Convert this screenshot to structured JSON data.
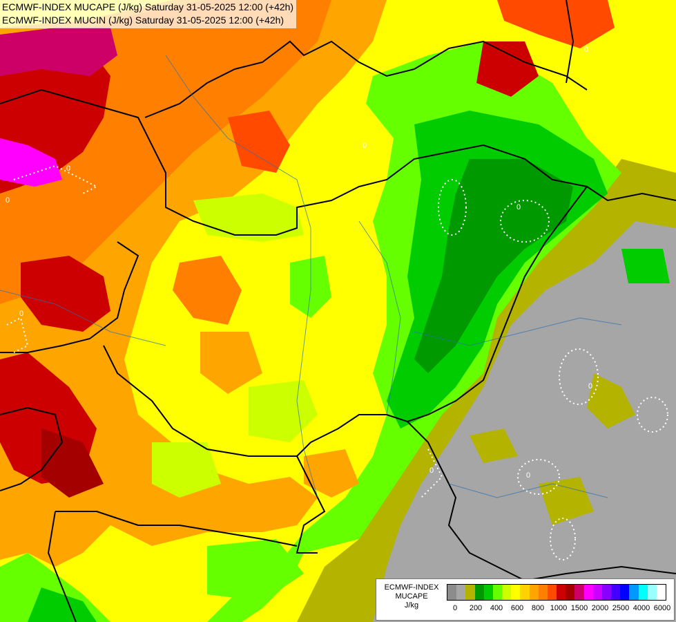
{
  "title": {
    "line1": "ECMWF-INDEX MUCAPE (J/kg) Saturday 31-05-2025 12:00 (+42h)",
    "line2": "ECMWF-INDEX MUCIN (J/kg) Saturday 31-05-2025 12:00 (+42h)"
  },
  "legend": {
    "line1": "ECMWF-INDEX",
    "line2": "MUCAPE",
    "line3": "J/kg",
    "colors": [
      "#8c8c8c",
      "#a6a6a6",
      "#b3b300",
      "#009900",
      "#00cc00",
      "#66ff00",
      "#ccff00",
      "#ffff00",
      "#ffd200",
      "#ffa500",
      "#ff7f00",
      "#ff4a00",
      "#cc0000",
      "#a50000",
      "#cc0066",
      "#ff00ff",
      "#cc00ff",
      "#8800ff",
      "#4400ff",
      "#0000ff",
      "#0099ff",
      "#00ffff",
      "#99ffff",
      "#ffffff"
    ],
    "ticks": [
      "0",
      "200",
      "400",
      "600",
      "800",
      "1000",
      "1500",
      "2000",
      "2500",
      "4000",
      "6000"
    ]
  },
  "mucin_labels": [
    "0",
    "0",
    "0",
    "0",
    "0",
    "0",
    "0",
    "0",
    "0"
  ]
}
